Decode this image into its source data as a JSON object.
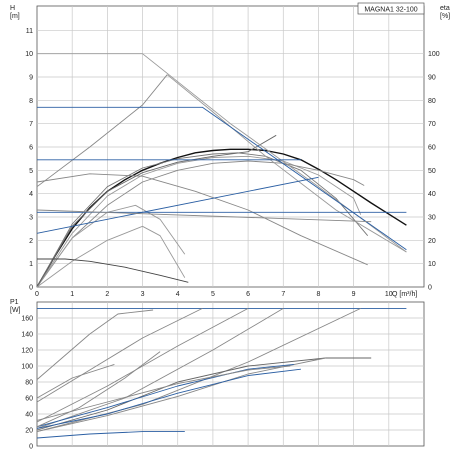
{
  "chart_data": [
    {
      "type": "line",
      "title": "MAGNA1 32-100",
      "xlabel": "Q [m³/h]",
      "ylabel_left": "H\n[m]",
      "ylabel_right": "eta\n[%]",
      "xlim": [
        0,
        11
      ],
      "ylim": [
        0,
        12
      ],
      "y2lim": [
        0,
        120
      ],
      "x_ticks": [
        0,
        1,
        2,
        3,
        4,
        5,
        6,
        7,
        8,
        9,
        10
      ],
      "y_ticks": [
        0,
        1,
        2,
        3,
        4,
        5,
        6,
        7,
        8,
        9,
        10,
        11
      ],
      "y2_ticks": [
        0,
        10,
        20,
        30,
        40,
        50,
        60,
        70,
        80,
        90,
        100
      ],
      "grid": true,
      "series": [
        {
          "color": "#111111",
          "x": [
            0,
            0.5,
            1,
            1.5,
            2,
            2.5,
            3,
            3.5,
            4,
            4.5,
            5,
            5.5,
            6,
            6.5,
            7,
            7.5,
            8,
            8.5,
            9,
            9.5,
            10.5
          ],
          "y": [
            0,
            1.3,
            2.5,
            3.4,
            4.1,
            4.6,
            5.0,
            5.3,
            5.55,
            5.75,
            5.85,
            5.9,
            5.9,
            5.85,
            5.7,
            5.45,
            5.05,
            4.6,
            4.1,
            3.6,
            2.65
          ]
        },
        {
          "color": "#777777",
          "x": [
            0,
            1,
            2,
            3,
            4,
            5,
            5.7,
            6.5,
            7.5,
            8.5,
            9.4
          ],
          "y": [
            0,
            2.7,
            4.3,
            5.1,
            5.5,
            5.7,
            5.75,
            5.6,
            5.0,
            3.8,
            2.2
          ]
        },
        {
          "color": "#999999",
          "x": [
            0,
            1,
            2,
            3,
            4,
            5,
            6,
            7,
            8,
            9,
            9.2
          ],
          "y": [
            0,
            2.3,
            3.9,
            4.8,
            5.3,
            5.55,
            5.6,
            5.4,
            4.8,
            3.8,
            3.1
          ]
        },
        {
          "color": "#888888",
          "x": [
            0,
            1,
            2,
            3,
            4,
            5,
            6,
            7,
            8,
            9,
            9.3
          ],
          "y": [
            0,
            2.1,
            3.5,
            4.5,
            5.0,
            5.3,
            5.4,
            5.3,
            5.0,
            4.6,
            4.35
          ]
        },
        {
          "color": "#999999",
          "x": [
            0,
            1,
            2,
            2.8,
            3.5,
            4.2
          ],
          "y": [
            0,
            2.1,
            3.2,
            3.5,
            2.9,
            1.4
          ]
        },
        {
          "color": "#888888",
          "x": [
            0,
            1.5,
            3,
            4.5,
            6,
            7.5,
            9.4
          ],
          "y": [
            4.5,
            4.85,
            4.75,
            4.1,
            3.3,
            2.2,
            0.95
          ]
        },
        {
          "color": "#666666",
          "x": [
            0,
            1,
            2,
            3,
            4,
            5,
            6,
            6.8
          ],
          "y": [
            0,
            2.6,
            4.1,
            4.9,
            5.35,
            5.6,
            5.8,
            6.5
          ]
        },
        {
          "color": "#999999",
          "x": [
            0,
            1,
            2,
            3,
            3.5,
            4.2
          ],
          "y": [
            0,
            1.1,
            2.0,
            2.6,
            2.2,
            0.4
          ]
        },
        {
          "color": "#444444",
          "x": [
            0,
            0.8,
            1.5,
            2.5,
            3.5,
            4.3
          ],
          "y": [
            1.2,
            1.2,
            1.1,
            0.85,
            0.5,
            0.2
          ]
        },
        {
          "color": "#888888",
          "x": [
            0,
            1.5,
            3,
            3.7
          ],
          "y": [
            4.3,
            6.0,
            7.8,
            9.1
          ]
        },
        {
          "color": "#999999",
          "x": [
            3.7,
            5,
            6.5,
            8.5,
            10.5
          ],
          "y": [
            9.1,
            7.5,
            5.6,
            3.3,
            1.5
          ]
        },
        {
          "color": "#999999",
          "x": [
            0,
            3.0
          ],
          "y": [
            10,
            10
          ]
        },
        {
          "color": "#999999",
          "x": [
            3.0,
            5.5,
            8,
            10.5
          ],
          "y": [
            10,
            7.0,
            4.3,
            1.5
          ]
        },
        {
          "color": "#2b5fa3",
          "x": [
            0,
            4.7,
            10.5
          ],
          "y": [
            7.7,
            7.7,
            1.6
          ]
        },
        {
          "color": "#2b5fa3",
          "x": [
            0,
            7.5
          ],
          "y": [
            5.45,
            5.45
          ]
        },
        {
          "color": "#2b5fa3",
          "x": [
            0,
            10.5
          ],
          "y": [
            3.2,
            3.2
          ]
        },
        {
          "color": "#2b5fa3",
          "x": [
            0,
            8.0
          ],
          "y": [
            2.3,
            4.7
          ]
        },
        {
          "color": "#888888",
          "x": [
            0,
            9.5
          ],
          "y": [
            3.3,
            2.8
          ]
        }
      ]
    },
    {
      "type": "line",
      "title": "",
      "xlabel": "",
      "ylabel": "P1\n[W]",
      "xlim": [
        0,
        11
      ],
      "ylim": [
        0,
        180
      ],
      "y_ticks": [
        0,
        20,
        40,
        60,
        80,
        100,
        120,
        140,
        160
      ],
      "grid": true,
      "series": [
        {
          "color": "#2b5fa3",
          "x": [
            0,
            4.7,
            10.5
          ],
          "y": [
            172,
            172,
            172
          ]
        },
        {
          "color": "#888888",
          "x": [
            0,
            1.5,
            2.3,
            3.3
          ],
          "y": [
            83,
            140,
            165,
            170
          ]
        },
        {
          "color": "#888888",
          "x": [
            0,
            1.5,
            3.0,
            4.7
          ],
          "y": [
            55,
            95,
            135,
            172
          ]
        },
        {
          "color": "#888888",
          "x": [
            0,
            2,
            4,
            6.0
          ],
          "y": [
            30,
            75,
            125,
            172
          ]
        },
        {
          "color": "#888888",
          "x": [
            0,
            2.5,
            5,
            7.0
          ],
          "y": [
            22,
            60,
            120,
            172
          ]
        },
        {
          "color": "#888888",
          "x": [
            0,
            3,
            6,
            9.2
          ],
          "y": [
            18,
            52,
            105,
            172
          ]
        },
        {
          "color": "#666666",
          "x": [
            0,
            2,
            4,
            6,
            8.2,
            9.5
          ],
          "y": [
            20,
            45,
            80,
            100,
            110,
            110
          ]
        },
        {
          "color": "#888888",
          "x": [
            0,
            2,
            4,
            6,
            8.2
          ],
          "y": [
            18,
            38,
            62,
            90,
            110
          ]
        },
        {
          "color": "#2b5fa3",
          "x": [
            0,
            2,
            4,
            6,
            7.5
          ],
          "y": [
            22,
            40,
            66,
            88,
            96
          ]
        },
        {
          "color": "#2b5fa3",
          "x": [
            0,
            2,
            4,
            6,
            7.3
          ],
          "y": [
            24,
            48,
            75,
            96,
            102
          ]
        },
        {
          "color": "#888888",
          "x": [
            0,
            2,
            4,
            6,
            7.2
          ],
          "y": [
            32,
            55,
            78,
            95,
            100
          ]
        },
        {
          "color": "#2b5fa3",
          "x": [
            0,
            1.5,
            3,
            4.2
          ],
          "y": [
            10,
            15,
            18,
            18
          ]
        },
        {
          "color": "#888888",
          "x": [
            0,
            1,
            2.2
          ],
          "y": [
            60,
            85,
            102
          ]
        },
        {
          "color": "#888888",
          "x": [
            0,
            1.2,
            2.5,
            3.5
          ],
          "y": [
            24,
            48,
            85,
            118
          ]
        }
      ]
    }
  ]
}
